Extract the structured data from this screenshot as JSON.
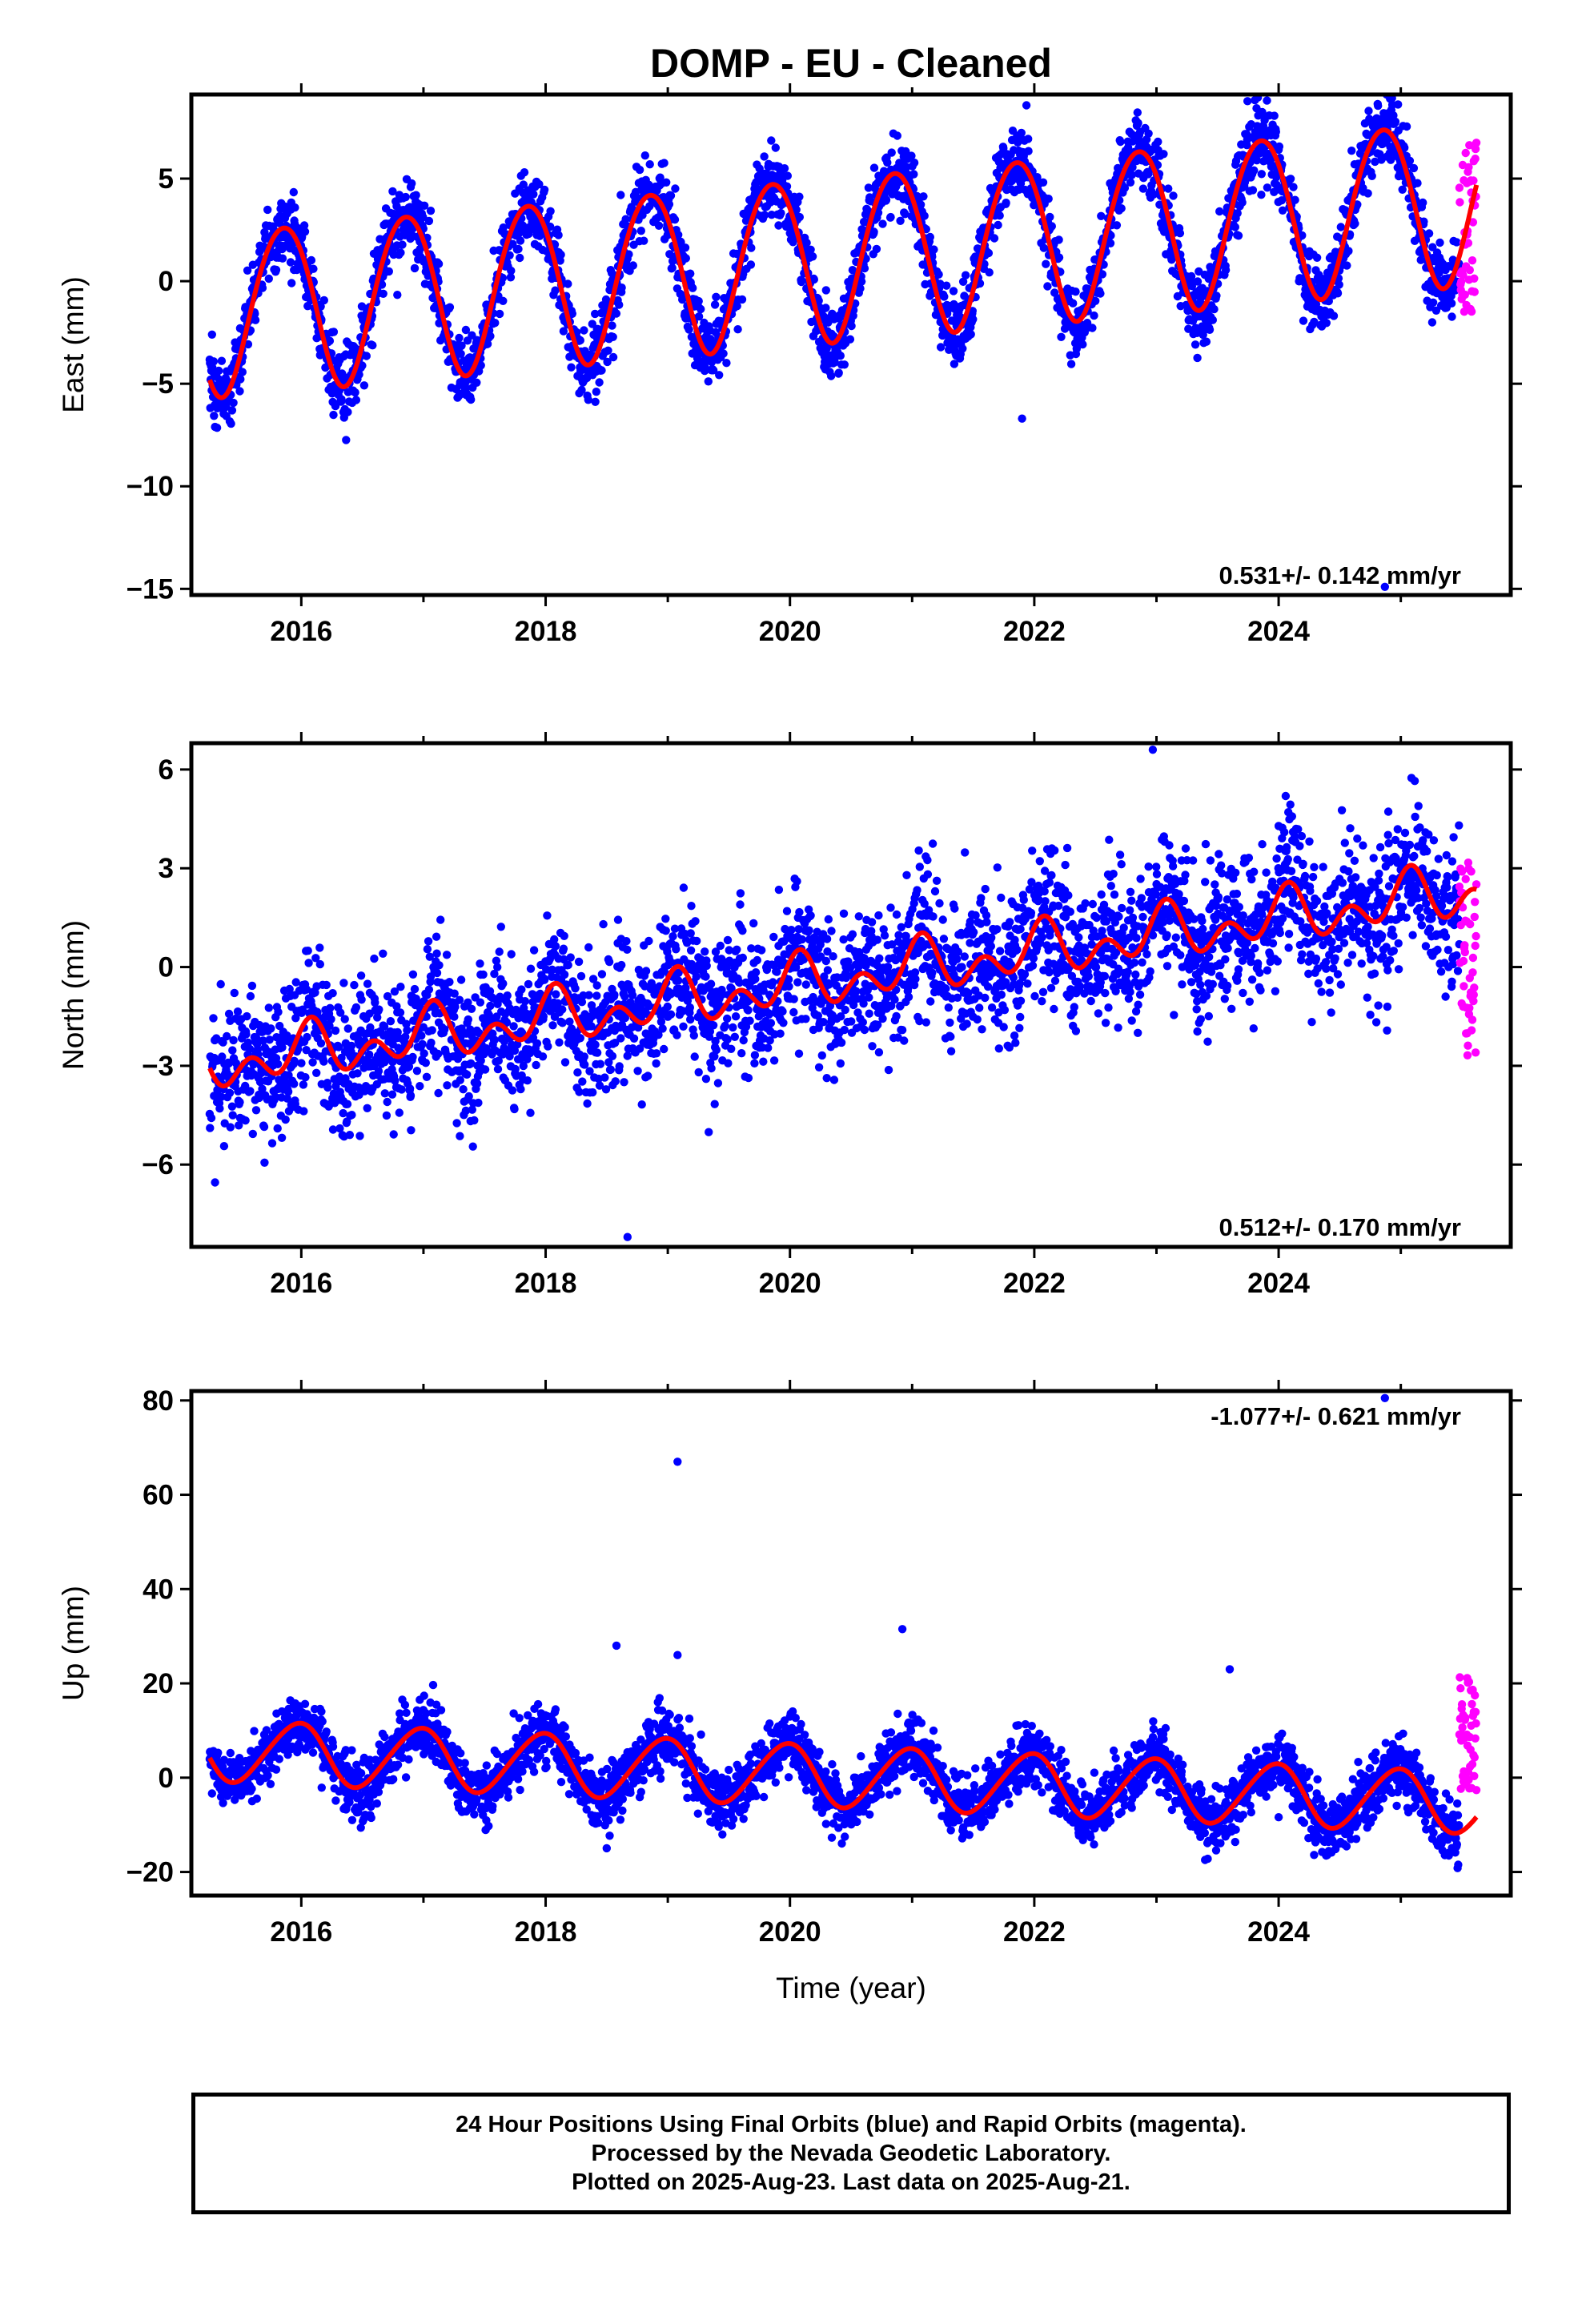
{
  "title": "DOMP  - EU - Cleaned",
  "footer": {
    "line1": "24 Hour Positions Using Final Orbits (blue) and Rapid Orbits (magenta).",
    "line2": "Processed by the Nevada Geodetic Laboratory.",
    "line3": "Plotted on 2025-Aug-23. Last data on 2025-Aug-21."
  },
  "colors": {
    "final_orbits": "#0000ff",
    "rapid_orbits": "#ff00ff",
    "model_fit": "#ff0000"
  },
  "chart_data": [
    {
      "type": "scatter",
      "ylabel": "East (mm)",
      "xlabel": "",
      "xlim": [
        2015.1,
        2025.9
      ],
      "ylim": [
        -15.3,
        9.1
      ],
      "x_ticks": [
        2016,
        2018,
        2020,
        2022,
        2024
      ],
      "y_ticks": [
        -15,
        -10,
        -5,
        0,
        5
      ],
      "y_tick_labels": [
        "−15",
        "−10",
        "−5",
        "0",
        "5"
      ],
      "data_start": 2015.25,
      "data_end": 2025.62,
      "rapid_start": 2025.48,
      "trend": {
        "offset": 1.3,
        "slope": 0.531,
        "ref_year": 2020.5
      },
      "annual": {
        "amp": 4.0,
        "phase": 2.5
      },
      "semiannual": {
        "amp": 0.25,
        "phase": 0.5
      },
      "scatter_sd": 0.9,
      "rapid_range": [
        -2.0,
        6.8
      ],
      "outliers": [
        {
          "x": 2021.9,
          "y": -6.7
        },
        {
          "x": 2024.87,
          "y": -14.9
        }
      ],
      "rate_label": "0.531+/- 0.142 mm/yr",
      "rate_anchor": "bottom-right",
      "series": [
        {
          "values": []
        }
      ]
    },
    {
      "type": "scatter",
      "ylabel": "North (mm)",
      "xlabel": "",
      "xlim": [
        2015.1,
        2025.9
      ],
      "ylim": [
        -8.5,
        6.8
      ],
      "x_ticks": [
        2016,
        2018,
        2020,
        2022,
        2024
      ],
      "y_ticks": [
        -6,
        -3,
        0,
        3,
        6
      ],
      "y_tick_labels": [
        "−6",
        "−3",
        "0",
        "3",
        "6"
      ],
      "data_start": 2015.25,
      "data_end": 2025.62,
      "rapid_start": 2025.48,
      "trend": {
        "offset": -0.3,
        "slope": 0.512,
        "ref_year": 2020.5
      },
      "annual": {
        "amp": 0.5,
        "phase": 1.2
      },
      "semiannual": {
        "amp": 0.55,
        "phase": 0.5
      },
      "scatter_sd": 1.05,
      "rapid_range": [
        -2.7,
        3.6
      ],
      "outliers": [
        {
          "x": 2018.67,
          "y": -8.2
        },
        {
          "x": 2022.97,
          "y": 6.6
        }
      ],
      "rate_label": "0.512+/- 0.170 mm/yr",
      "rate_anchor": "bottom-right",
      "series": [
        {
          "values": []
        }
      ]
    },
    {
      "type": "scatter",
      "ylabel": "Up (mm)",
      "xlabel": "Time (year)",
      "xlim": [
        2015.1,
        2025.9
      ],
      "ylim": [
        -25,
        82
      ],
      "x_ticks": [
        2016,
        2018,
        2020,
        2022,
        2024
      ],
      "y_ticks": [
        -20,
        0,
        20,
        40,
        60,
        80
      ],
      "y_tick_labels": [
        "−20",
        "0",
        "20",
        "40",
        "60",
        "80"
      ],
      "data_start": 2015.25,
      "data_end": 2025.62,
      "rapid_start": 2025.48,
      "trend": {
        "offset": 0.2,
        "slope": -1.077,
        "ref_year": 2020.5
      },
      "annual": {
        "amp": 6.5,
        "phase": 1.8
      },
      "semiannual": {
        "amp": 0.6,
        "phase": 0.3
      },
      "scatter_sd": 3.2,
      "rapid_range": [
        -3.0,
        22.0
      ],
      "outliers": [
        {
          "x": 2019.08,
          "y": 67.0
        },
        {
          "x": 2018.58,
          "y": 28.0
        },
        {
          "x": 2019.08,
          "y": 26.0
        },
        {
          "x": 2020.92,
          "y": 31.5
        },
        {
          "x": 2024.87,
          "y": 80.5
        },
        {
          "x": 2023.6,
          "y": 23.0
        }
      ],
      "rate_label": "-1.077+/- 0.621 mm/yr",
      "rate_anchor": "top-right",
      "series": [
        {
          "values": []
        }
      ]
    }
  ]
}
